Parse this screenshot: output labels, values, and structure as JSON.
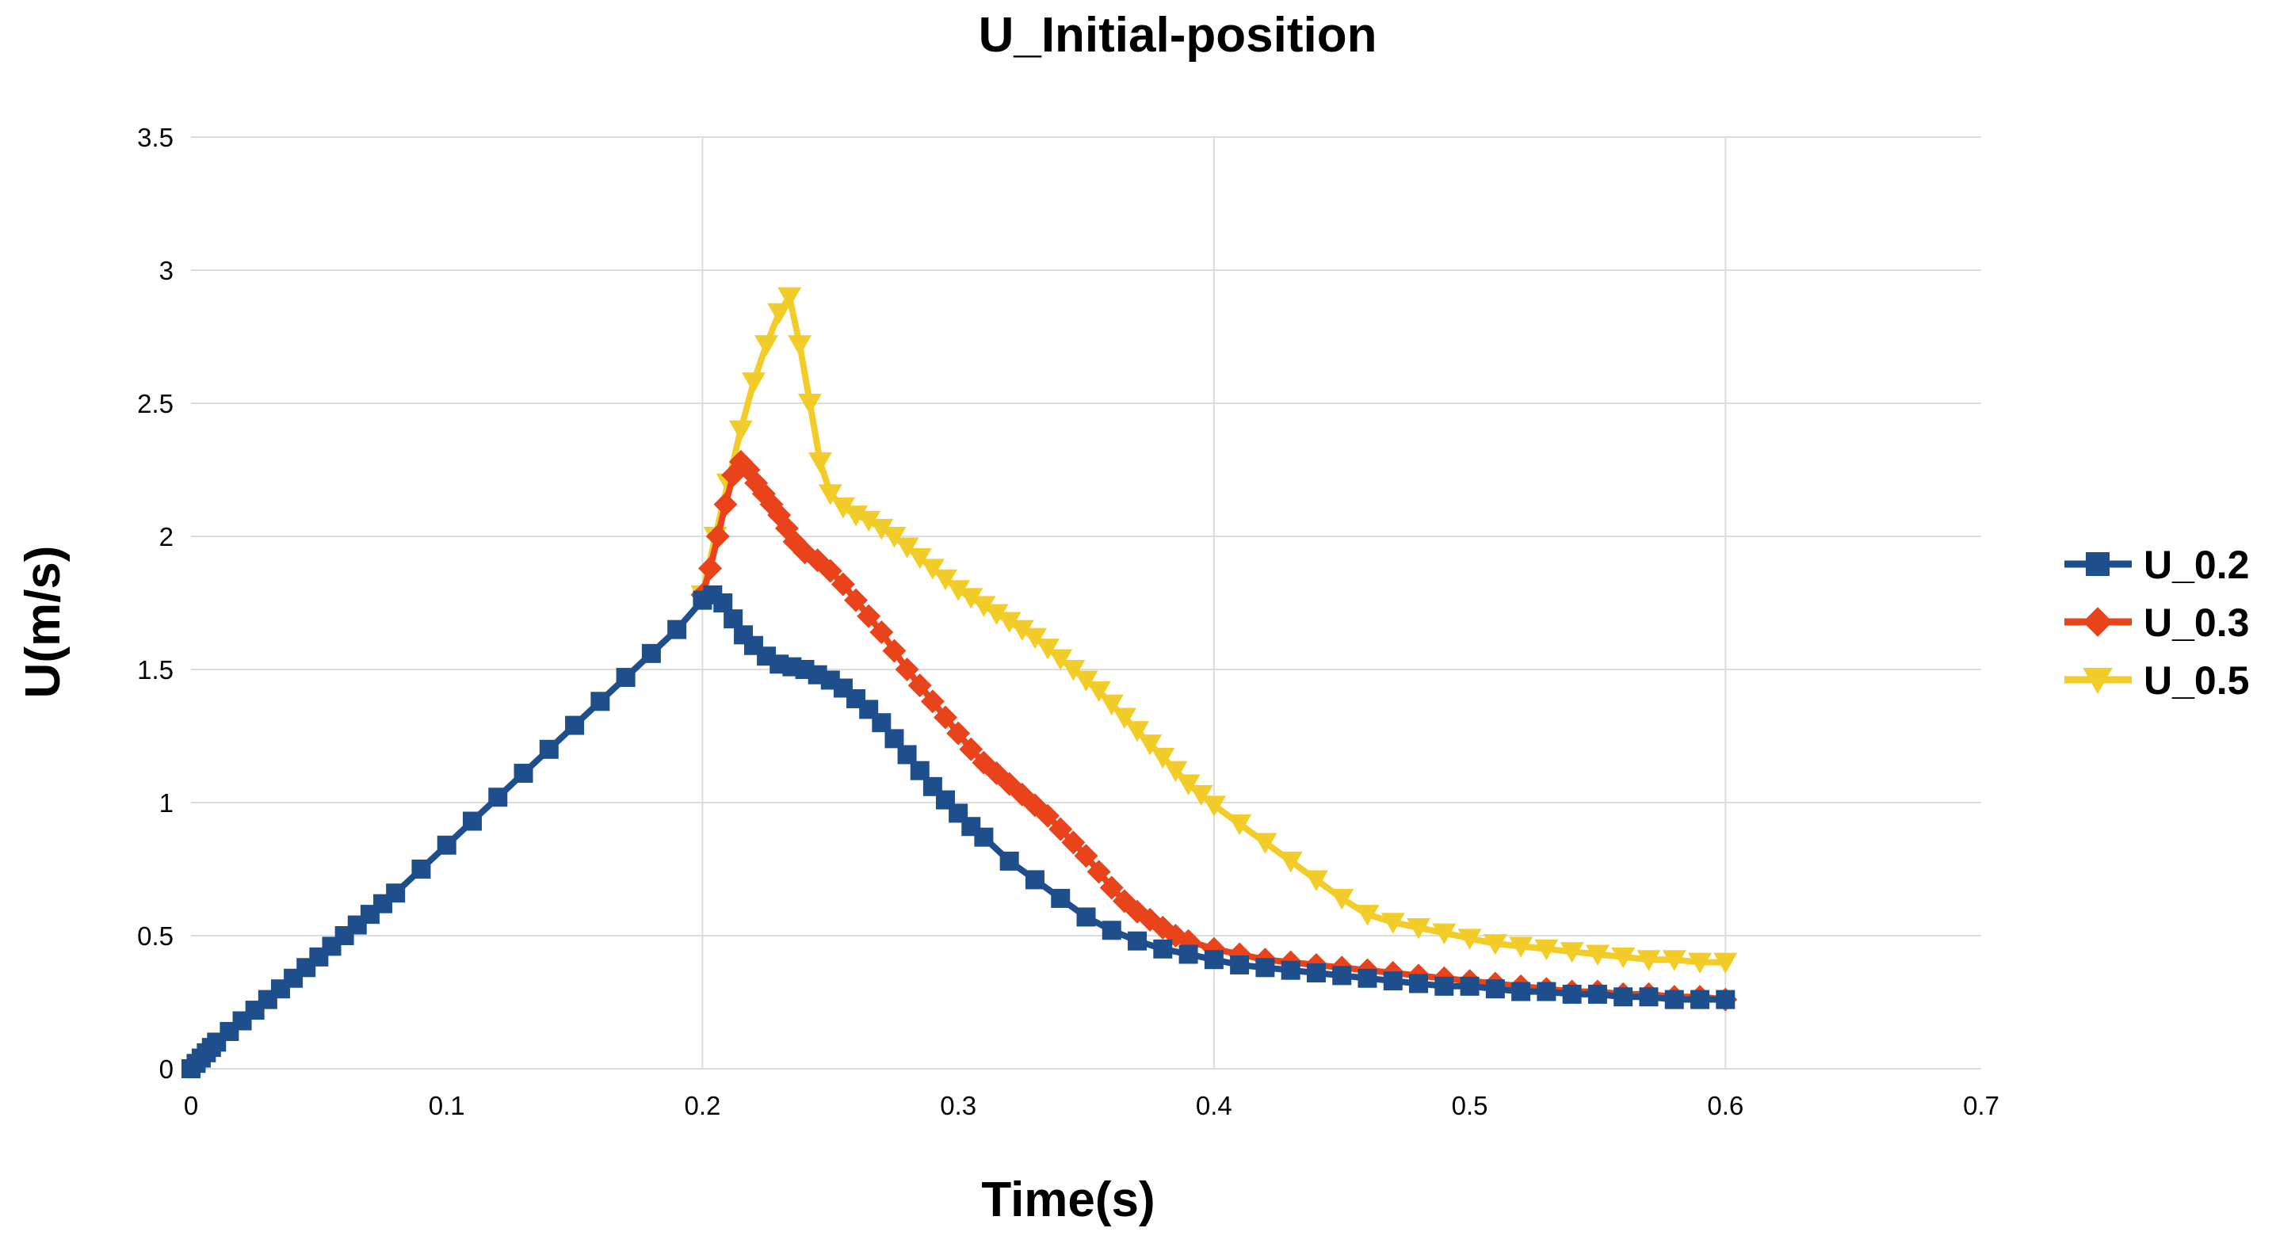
{
  "chart_data": {
    "type": "line",
    "title": "U_Initial-position",
    "xlabel": "Time(s)",
    "ylabel": "U(m/s)",
    "xlim": [
      0,
      0.7
    ],
    "ylim": [
      0,
      3.5
    ],
    "x_ticks": [
      0,
      0.1,
      0.2,
      0.3,
      0.4,
      0.5,
      0.6,
      0.7
    ],
    "x_tick_labels": [
      "0",
      "0.1",
      "0.2",
      "0.3",
      "0.4",
      "0.5",
      "0.6",
      "0.7"
    ],
    "y_ticks": [
      0,
      0.5,
      1,
      1.5,
      2,
      2.5,
      3,
      3.5
    ],
    "y_tick_labels": [
      "0",
      "0.5",
      "1",
      "1.5",
      "2",
      "2.5",
      "3",
      "3.5"
    ],
    "x_grid": [
      0.2,
      0.4,
      0.6
    ],
    "legend_position": "right",
    "series": [
      {
        "name": "U_0.2",
        "color": "#1f4e8c",
        "marker": "square",
        "x": [
          0,
          0.002,
          0.004,
          0.006,
          0.008,
          0.01,
          0.015,
          0.02,
          0.025,
          0.03,
          0.035,
          0.04,
          0.045,
          0.05,
          0.055,
          0.06,
          0.065,
          0.07,
          0.075,
          0.08,
          0.09,
          0.1,
          0.11,
          0.12,
          0.13,
          0.14,
          0.15,
          0.16,
          0.17,
          0.18,
          0.19,
          0.2,
          0.204,
          0.208,
          0.212,
          0.216,
          0.22,
          0.225,
          0.23,
          0.235,
          0.24,
          0.245,
          0.25,
          0.255,
          0.26,
          0.265,
          0.27,
          0.275,
          0.28,
          0.285,
          0.29,
          0.295,
          0.3,
          0.305,
          0.31,
          0.32,
          0.33,
          0.34,
          0.35,
          0.36,
          0.37,
          0.38,
          0.39,
          0.4,
          0.41,
          0.42,
          0.43,
          0.44,
          0.45,
          0.46,
          0.47,
          0.48,
          0.49,
          0.5,
          0.51,
          0.52,
          0.53,
          0.54,
          0.55,
          0.56,
          0.57,
          0.58,
          0.59,
          0.6
        ],
        "y": [
          0,
          0.02,
          0.04,
          0.06,
          0.08,
          0.1,
          0.14,
          0.18,
          0.22,
          0.26,
          0.3,
          0.34,
          0.38,
          0.42,
          0.46,
          0.5,
          0.54,
          0.58,
          0.62,
          0.66,
          0.75,
          0.84,
          0.93,
          1.02,
          1.11,
          1.2,
          1.29,
          1.38,
          1.47,
          1.56,
          1.65,
          1.76,
          1.78,
          1.75,
          1.69,
          1.63,
          1.59,
          1.55,
          1.52,
          1.51,
          1.5,
          1.48,
          1.46,
          1.43,
          1.39,
          1.35,
          1.3,
          1.24,
          1.18,
          1.12,
          1.06,
          1.01,
          0.96,
          0.91,
          0.87,
          0.78,
          0.71,
          0.64,
          0.57,
          0.52,
          0.48,
          0.45,
          0.43,
          0.41,
          0.39,
          0.38,
          0.37,
          0.36,
          0.35,
          0.34,
          0.33,
          0.32,
          0.31,
          0.31,
          0.3,
          0.29,
          0.29,
          0.28,
          0.28,
          0.27,
          0.27,
          0.26,
          0.26,
          0.26
        ]
      },
      {
        "name": "U_0.3",
        "color": "#e8431a",
        "marker": "diamond",
        "x": [
          0.2,
          0.203,
          0.206,
          0.209,
          0.212,
          0.215,
          0.218,
          0.221,
          0.224,
          0.227,
          0.23,
          0.233,
          0.236,
          0.24,
          0.245,
          0.25,
          0.255,
          0.26,
          0.265,
          0.27,
          0.275,
          0.28,
          0.285,
          0.29,
          0.295,
          0.3,
          0.305,
          0.31,
          0.315,
          0.32,
          0.325,
          0.33,
          0.335,
          0.34,
          0.345,
          0.35,
          0.355,
          0.36,
          0.365,
          0.37,
          0.375,
          0.38,
          0.385,
          0.39,
          0.4,
          0.41,
          0.42,
          0.43,
          0.44,
          0.45,
          0.46,
          0.47,
          0.48,
          0.49,
          0.5,
          0.51,
          0.52,
          0.53,
          0.54,
          0.55,
          0.56,
          0.57,
          0.58,
          0.59,
          0.6
        ],
        "y": [
          1.78,
          1.88,
          2.0,
          2.12,
          2.23,
          2.28,
          2.25,
          2.2,
          2.16,
          2.12,
          2.08,
          2.03,
          1.98,
          1.94,
          1.91,
          1.87,
          1.82,
          1.76,
          1.7,
          1.64,
          1.57,
          1.5,
          1.44,
          1.38,
          1.32,
          1.26,
          1.2,
          1.15,
          1.11,
          1.07,
          1.03,
          0.99,
          0.95,
          0.9,
          0.85,
          0.8,
          0.74,
          0.68,
          0.63,
          0.59,
          0.56,
          0.53,
          0.5,
          0.48,
          0.45,
          0.43,
          0.41,
          0.4,
          0.39,
          0.38,
          0.37,
          0.36,
          0.35,
          0.34,
          0.33,
          0.32,
          0.31,
          0.3,
          0.29,
          0.29,
          0.28,
          0.28,
          0.27,
          0.27,
          0.26
        ]
      },
      {
        "name": "U_0.5",
        "color": "#f2cd2a",
        "marker": "triangle-down",
        "x": [
          0.2,
          0.205,
          0.21,
          0.215,
          0.22,
          0.225,
          0.23,
          0.234,
          0.238,
          0.242,
          0.246,
          0.25,
          0.255,
          0.26,
          0.265,
          0.27,
          0.275,
          0.28,
          0.285,
          0.29,
          0.295,
          0.3,
          0.305,
          0.31,
          0.315,
          0.32,
          0.325,
          0.33,
          0.335,
          0.34,
          0.345,
          0.35,
          0.355,
          0.36,
          0.365,
          0.37,
          0.375,
          0.38,
          0.385,
          0.39,
          0.395,
          0.4,
          0.41,
          0.42,
          0.43,
          0.44,
          0.45,
          0.46,
          0.47,
          0.48,
          0.49,
          0.5,
          0.51,
          0.52,
          0.53,
          0.54,
          0.55,
          0.56,
          0.57,
          0.58,
          0.59,
          0.6
        ],
        "y": [
          1.78,
          2.0,
          2.2,
          2.4,
          2.58,
          2.72,
          2.84,
          2.9,
          2.72,
          2.5,
          2.28,
          2.16,
          2.11,
          2.08,
          2.06,
          2.03,
          2.0,
          1.96,
          1.92,
          1.88,
          1.84,
          1.8,
          1.77,
          1.74,
          1.71,
          1.68,
          1.65,
          1.62,
          1.58,
          1.54,
          1.5,
          1.46,
          1.42,
          1.37,
          1.32,
          1.27,
          1.22,
          1.17,
          1.12,
          1.07,
          1.03,
          0.99,
          0.92,
          0.85,
          0.78,
          0.71,
          0.64,
          0.58,
          0.55,
          0.53,
          0.51,
          0.49,
          0.47,
          0.46,
          0.45,
          0.44,
          0.43,
          0.42,
          0.41,
          0.41,
          0.4,
          0.4
        ]
      }
    ]
  }
}
